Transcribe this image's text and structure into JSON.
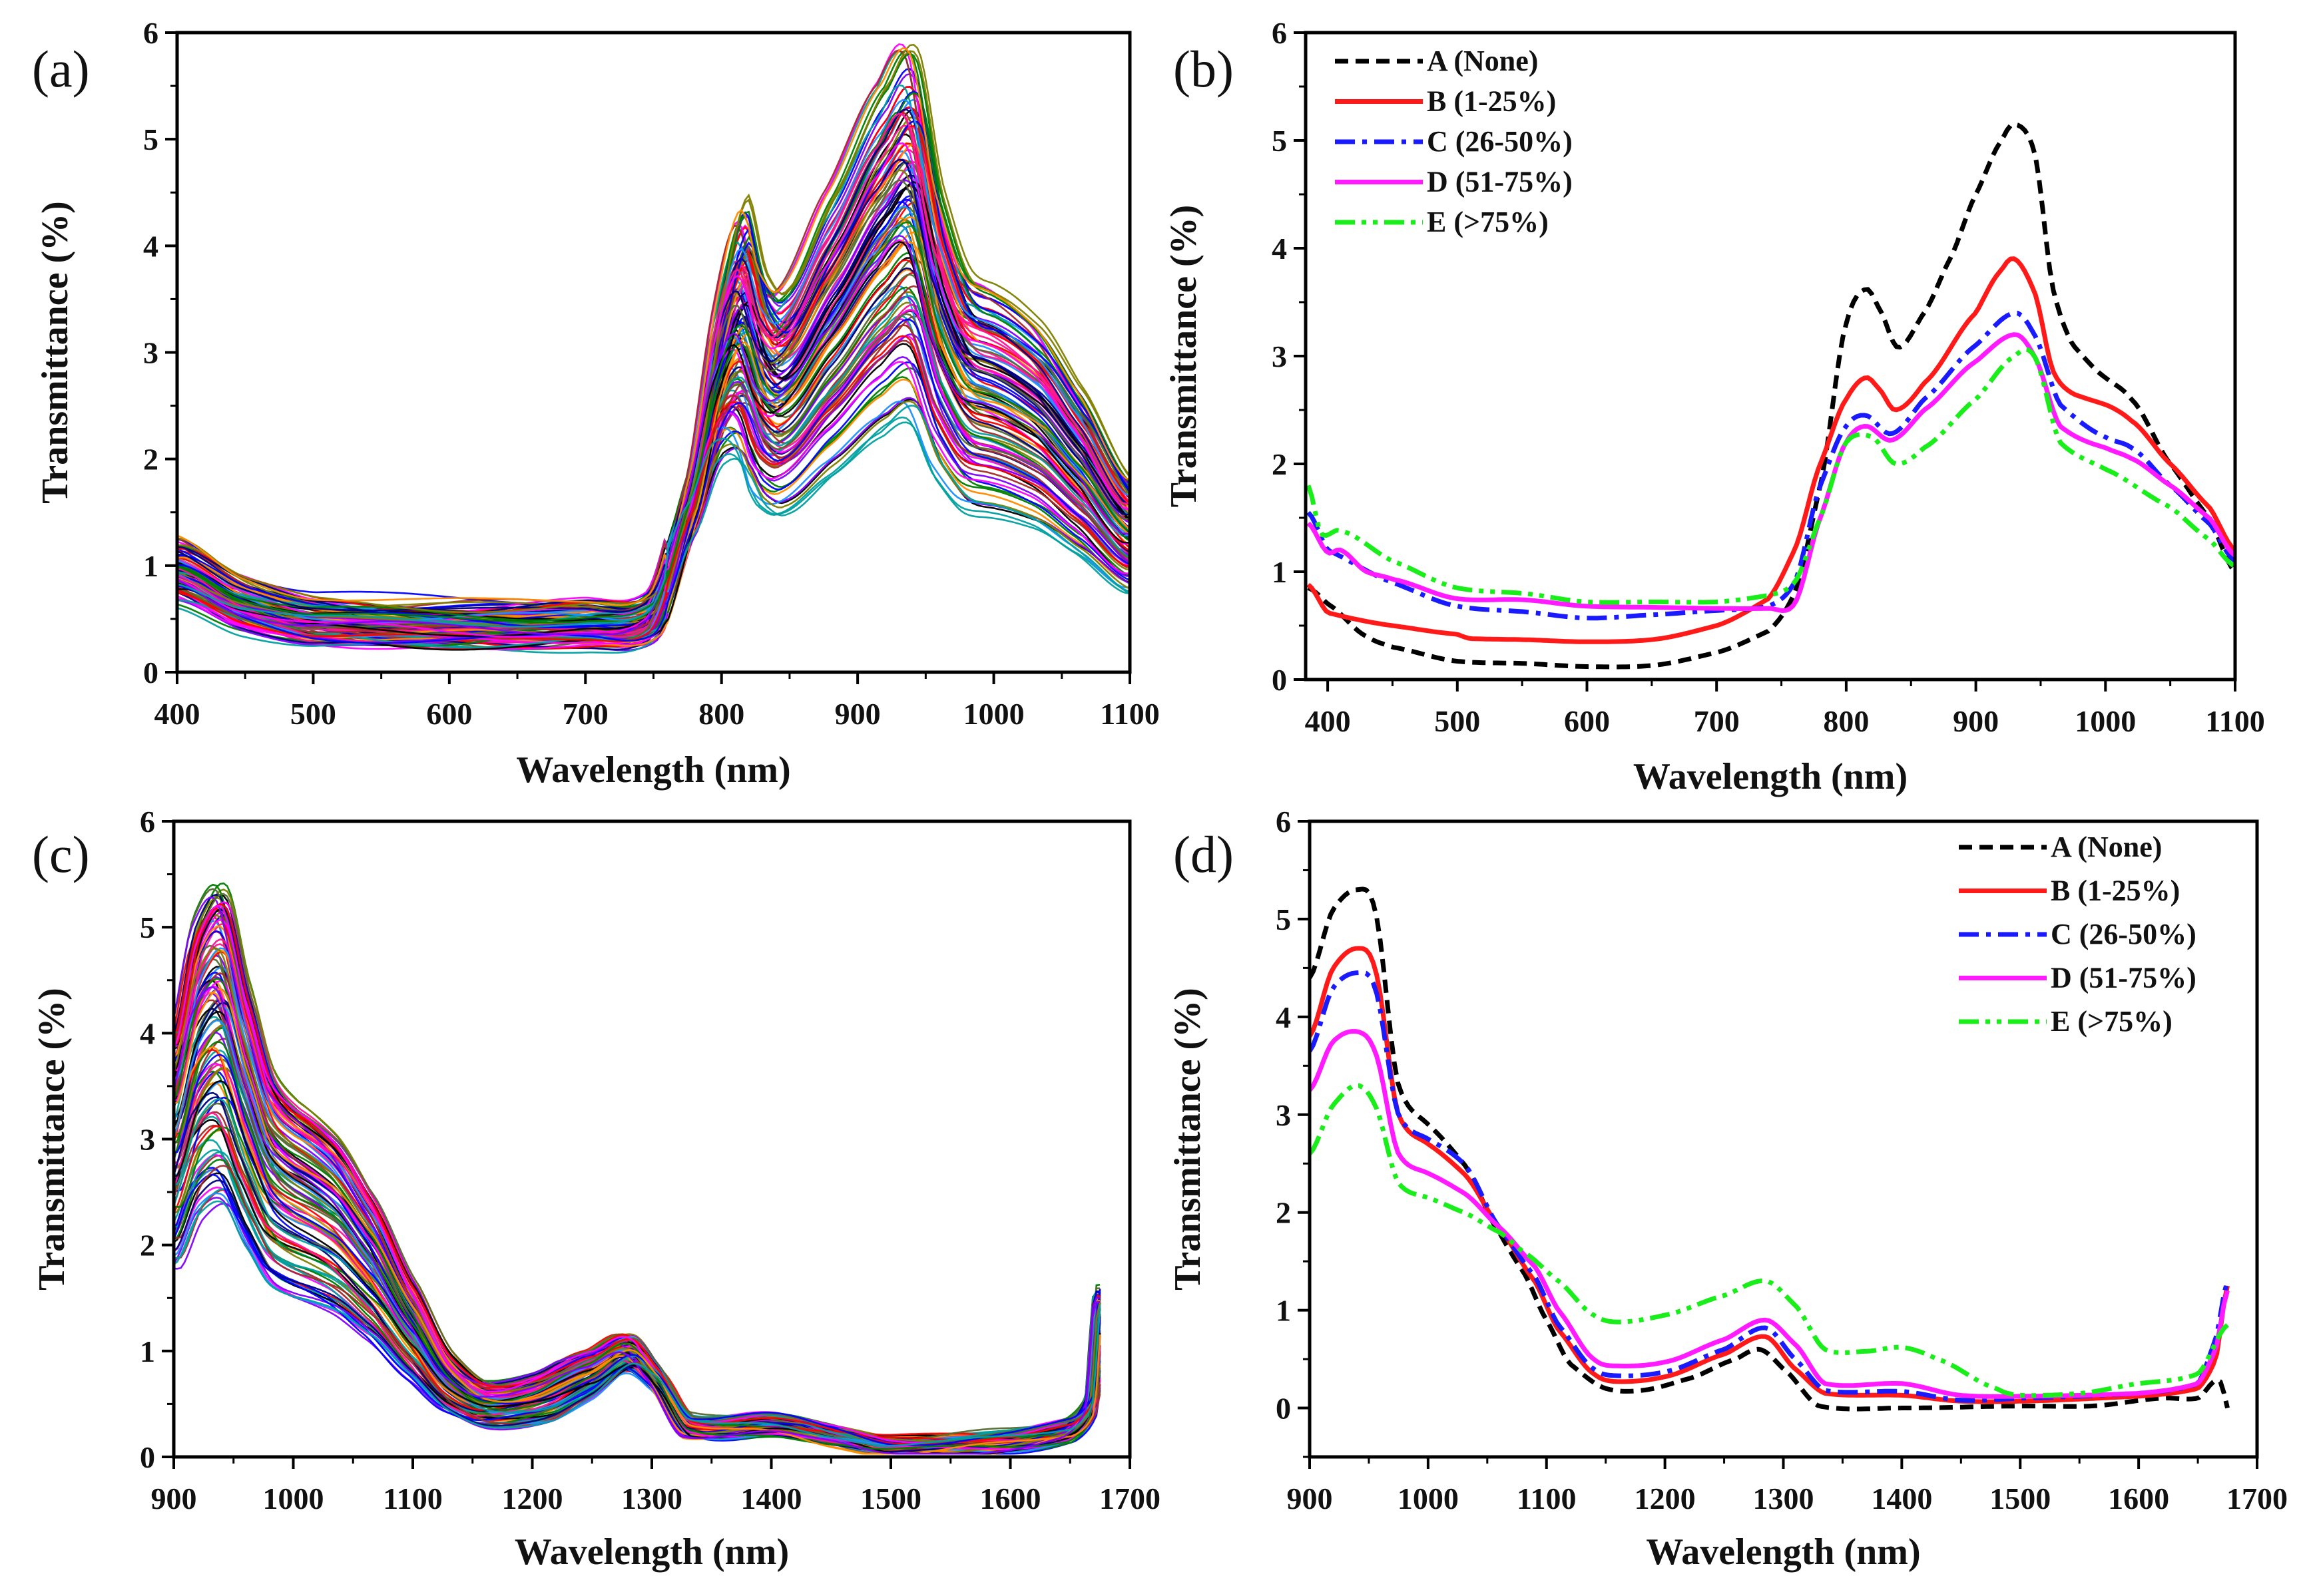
{
  "chart_data": [
    {
      "panel": "(a)",
      "type": "line",
      "xlabel": "Wavelength (nm)",
      "ylabel": "Transmittance (%)",
      "xlim": [
        400,
        1100
      ],
      "ylim": [
        0,
        6
      ],
      "xticks": [
        400,
        500,
        600,
        700,
        800,
        900,
        1000,
        1100
      ],
      "yticks": [
        0,
        1,
        2,
        3,
        4,
        5,
        6
      ],
      "description": "many overlapping individual sample spectra",
      "series_count": 120,
      "mean_curve": {
        "x": [
          400,
          450,
          500,
          600,
          700,
          750,
          780,
          800,
          815,
          830,
          845,
          880,
          920,
          940,
          960,
          980,
          1000,
          1030,
          1060,
          1100
        ],
        "y": [
          0.9,
          0.6,
          0.45,
          0.4,
          0.42,
          0.5,
          1.6,
          2.7,
          3.0,
          2.5,
          2.4,
          3.0,
          3.7,
          3.9,
          3.0,
          2.5,
          2.4,
          2.2,
          1.8,
          1.2
        ]
      },
      "scale_range": [
        0.6,
        1.5
      ]
    },
    {
      "panel": "(b)",
      "type": "line",
      "xlabel": "Wavelength (nm)",
      "ylabel": "Transmittance (%)",
      "xlim": [
        383,
        1100
      ],
      "ylim": [
        0,
        6
      ],
      "xticks": [
        400,
        500,
        600,
        700,
        800,
        900,
        1000,
        1100
      ],
      "yticks": [
        0,
        1,
        2,
        3,
        4,
        5,
        6
      ],
      "legend": "top-left",
      "series": [
        {
          "name": "A (None)",
          "color": "#000000",
          "style": "dashed",
          "x": [
            385,
            400,
            430,
            450,
            500,
            550,
            600,
            650,
            700,
            740,
            760,
            780,
            800,
            815,
            825,
            840,
            860,
            880,
            900,
            920,
            930,
            945,
            960,
            975,
            1000,
            1020,
            1050,
            1080,
            1100
          ],
          "y": [
            0.85,
            0.7,
            0.4,
            0.3,
            0.17,
            0.15,
            0.12,
            0.13,
            0.25,
            0.45,
            0.8,
            1.8,
            3.3,
            3.62,
            3.45,
            3.08,
            3.4,
            3.9,
            4.5,
            5.0,
            5.15,
            4.9,
            3.6,
            3.1,
            2.8,
            2.6,
            2.0,
            1.5,
            1.0
          ]
        },
        {
          "name": "B (1-25%)",
          "color": "#ff1a1a",
          "style": "solid",
          "x": [
            385,
            400,
            450,
            500,
            510,
            550,
            600,
            650,
            700,
            740,
            760,
            780,
            800,
            815,
            825,
            838,
            860,
            900,
            920,
            930,
            945,
            960,
            975,
            1000,
            1020,
            1050,
            1080,
            1100
          ],
          "y": [
            0.88,
            0.62,
            0.5,
            0.42,
            0.38,
            0.37,
            0.35,
            0.37,
            0.5,
            0.75,
            1.2,
            2.0,
            2.6,
            2.8,
            2.7,
            2.5,
            2.75,
            3.4,
            3.8,
            3.9,
            3.6,
            2.85,
            2.65,
            2.55,
            2.4,
            2.0,
            1.6,
            1.2
          ]
        },
        {
          "name": "C (26-50%)",
          "color": "#1a1aff",
          "style": "dashdot",
          "x": [
            385,
            400,
            450,
            500,
            550,
            600,
            650,
            700,
            740,
            760,
            780,
            800,
            815,
            835,
            860,
            900,
            930,
            945,
            965,
            1000,
            1020,
            1050,
            1080,
            1100
          ],
          "y": [
            1.55,
            1.2,
            0.9,
            0.68,
            0.63,
            0.57,
            0.6,
            0.64,
            0.68,
            0.9,
            1.8,
            2.35,
            2.45,
            2.28,
            2.6,
            3.1,
            3.4,
            3.2,
            2.55,
            2.25,
            2.15,
            1.8,
            1.45,
            1.1
          ]
        },
        {
          "name": "D (51-75%)",
          "color": "#ff1aff",
          "style": "solid",
          "x": [
            385,
            400,
            410,
            430,
            450,
            500,
            550,
            600,
            650,
            700,
            740,
            760,
            780,
            800,
            815,
            835,
            860,
            900,
            930,
            945,
            965,
            1000,
            1020,
            1050,
            1080,
            1100
          ],
          "y": [
            1.45,
            1.18,
            1.2,
            1.0,
            0.93,
            0.75,
            0.74,
            0.68,
            0.67,
            0.66,
            0.66,
            0.7,
            1.5,
            2.2,
            2.35,
            2.22,
            2.5,
            2.95,
            3.2,
            3.0,
            2.35,
            2.15,
            2.05,
            1.8,
            1.5,
            1.15
          ]
        },
        {
          "name": "E (>75%)",
          "color": "#1aee1a",
          "style": "dashdotdot",
          "x": [
            385,
            395,
            410,
            450,
            500,
            550,
            600,
            650,
            700,
            740,
            760,
            780,
            800,
            820,
            838,
            860,
            900,
            930,
            945,
            965,
            1000,
            1050,
            1080,
            1100
          ],
          "y": [
            1.8,
            1.35,
            1.38,
            1.1,
            0.85,
            0.8,
            0.72,
            0.72,
            0.72,
            0.78,
            0.9,
            1.5,
            2.2,
            2.25,
            2.0,
            2.15,
            2.6,
            3.0,
            3.0,
            2.2,
            1.95,
            1.6,
            1.3,
            1.05
          ]
        }
      ]
    },
    {
      "panel": "(c)",
      "type": "line",
      "xlabel": "Wavelength (nm)",
      "ylabel": "Transmittance (%)",
      "xlim": [
        900,
        1700
      ],
      "ylim": [
        0,
        6
      ],
      "xticks": [
        900,
        1000,
        1100,
        1200,
        1300,
        1400,
        1500,
        1600,
        1700
      ],
      "yticks": [
        0,
        1,
        2,
        3,
        4,
        5,
        6
      ],
      "description": "many overlapping individual sample spectra",
      "series_count": 120,
      "mean_curve": {
        "x": [
          900,
          920,
          940,
          960,
          980,
          1000,
          1030,
          1060,
          1100,
          1130,
          1160,
          1200,
          1250,
          1280,
          1300,
          1330,
          1400,
          1450,
          1500,
          1600,
          1650,
          1668,
          1675
        ],
        "y": [
          3.0,
          3.8,
          4.0,
          3.3,
          2.7,
          2.5,
          2.3,
          1.9,
          1.2,
          0.7,
          0.5,
          0.55,
          0.8,
          1.0,
          0.8,
          0.3,
          0.3,
          0.2,
          0.1,
          0.15,
          0.25,
          0.5,
          1.5
        ]
      },
      "scale_range": [
        0.6,
        1.35
      ]
    },
    {
      "panel": "(d)",
      "type": "line",
      "xlabel": "Wavelength (nm)",
      "ylabel": "Transmittance (%)",
      "xlim": [
        900,
        1700
      ],
      "ylim": [
        -0.5,
        6
      ],
      "xticks": [
        900,
        1000,
        1100,
        1200,
        1300,
        1400,
        1500,
        1600,
        1700
      ],
      "yticks": [
        0,
        1,
        2,
        3,
        4,
        5,
        6
      ],
      "legend": "top-right",
      "series": [
        {
          "name": "A (None)",
          "color": "#000000",
          "style": "dashed",
          "x": [
            900,
            920,
            940,
            955,
            975,
            1000,
            1030,
            1060,
            1080,
            1100,
            1120,
            1150,
            1180,
            1220,
            1260,
            1280,
            1300,
            1330,
            1400,
            1500,
            1560,
            1620,
            1650,
            1665,
            1670,
            1675
          ],
          "y": [
            4.4,
            5.1,
            5.3,
            5.1,
            3.3,
            2.9,
            2.5,
            1.8,
            1.4,
            0.9,
            0.45,
            0.2,
            0.18,
            0.3,
            0.5,
            0.6,
            0.4,
            0.02,
            0.0,
            0.02,
            0.02,
            0.1,
            0.1,
            0.28,
            0.25,
            0.0
          ]
        },
        {
          "name": "B (1-25%)",
          "color": "#ff1a1a",
          "style": "solid",
          "x": [
            900,
            920,
            940,
            955,
            975,
            1000,
            1030,
            1060,
            1090,
            1110,
            1140,
            1160,
            1200,
            1250,
            1285,
            1310,
            1335,
            1400,
            1450,
            1500,
            1600,
            1650,
            1665,
            1675
          ],
          "y": [
            3.8,
            4.5,
            4.7,
            4.5,
            3.0,
            2.7,
            2.4,
            1.85,
            1.3,
            0.8,
            0.35,
            0.27,
            0.32,
            0.55,
            0.73,
            0.4,
            0.15,
            0.13,
            0.07,
            0.07,
            0.12,
            0.2,
            0.5,
            1.25
          ]
        },
        {
          "name": "C (26-50%)",
          "color": "#1a1aff",
          "style": "dashdot",
          "x": [
            900,
            920,
            940,
            955,
            975,
            1000,
            1030,
            1060,
            1090,
            1110,
            1140,
            1160,
            1200,
            1250,
            1285,
            1310,
            1335,
            1400,
            1450,
            1500,
            1600,
            1650,
            1665,
            1675
          ],
          "y": [
            3.65,
            4.3,
            4.45,
            4.3,
            3.0,
            2.75,
            2.5,
            1.85,
            1.35,
            0.85,
            0.4,
            0.33,
            0.37,
            0.6,
            0.82,
            0.5,
            0.18,
            0.17,
            0.08,
            0.1,
            0.15,
            0.25,
            0.7,
            1.3
          ]
        },
        {
          "name": "D (51-75%)",
          "color": "#ff1aff",
          "style": "solid",
          "x": [
            900,
            920,
            940,
            955,
            975,
            1000,
            1030,
            1060,
            1090,
            1110,
            1140,
            1160,
            1200,
            1250,
            1285,
            1310,
            1335,
            1400,
            1450,
            1500,
            1600,
            1650,
            1665,
            1675
          ],
          "y": [
            3.25,
            3.75,
            3.85,
            3.65,
            2.6,
            2.4,
            2.2,
            1.85,
            1.45,
            1.0,
            0.5,
            0.43,
            0.47,
            0.7,
            0.9,
            0.65,
            0.25,
            0.25,
            0.13,
            0.12,
            0.15,
            0.25,
            0.6,
            1.2
          ]
        },
        {
          "name": "E (>75%)",
          "color": "#1aee1a",
          "style": "dashdotdot",
          "x": [
            900,
            920,
            940,
            955,
            975,
            1000,
            1030,
            1060,
            1080,
            1110,
            1140,
            1160,
            1200,
            1250,
            1285,
            1310,
            1335,
            1370,
            1400,
            1430,
            1480,
            1500,
            1550,
            1600,
            1650,
            1675
          ],
          "y": [
            2.6,
            3.1,
            3.3,
            3.1,
            2.3,
            2.15,
            2.0,
            1.8,
            1.6,
            1.3,
            0.95,
            0.88,
            0.95,
            1.15,
            1.3,
            1.05,
            0.6,
            0.58,
            0.62,
            0.5,
            0.2,
            0.13,
            0.15,
            0.25,
            0.35,
            0.85
          ]
        }
      ]
    }
  ]
}
